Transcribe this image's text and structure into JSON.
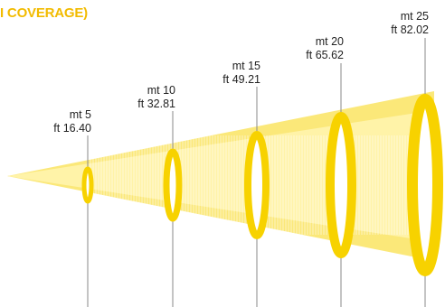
{
  "title": "I COVERAGE)",
  "colors": {
    "beam": "#fbe879",
    "beam_edge": "#f7d700",
    "ring": "#f7d200",
    "hatch": "#ffffff",
    "line": "#8a8a8a",
    "title": "#f2bb00",
    "text": "#222222"
  },
  "distances": [
    {
      "metric": "mt 5",
      "imperial": "ft 16.40"
    },
    {
      "metric": "mt 10",
      "imperial": "ft 32.81"
    },
    {
      "metric": "mt 15",
      "imperial": "ft 49.21"
    },
    {
      "metric": "mt 20",
      "imperial": "ft 65.62"
    },
    {
      "metric": "mt 25",
      "imperial": "ft 82.02"
    }
  ]
}
